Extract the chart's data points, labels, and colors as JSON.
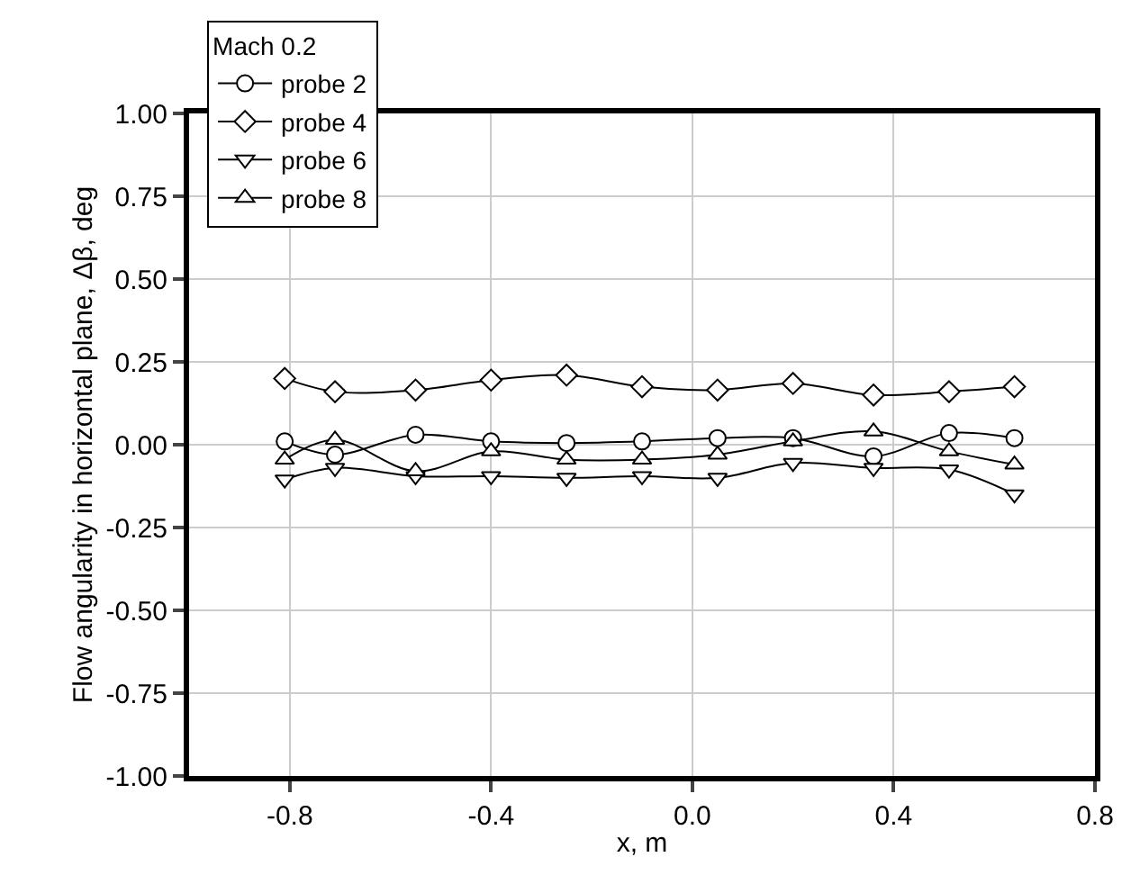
{
  "chart_data": {
    "type": "line",
    "xlabel": "x, m",
    "ylabel": "Flow angularity in horizontal plane, Δβ, deg",
    "legend_title": "Mach 0.2",
    "legend": "top left",
    "grid": true,
    "line_style": "solid",
    "x": [
      -0.81,
      -0.71,
      -0.55,
      -0.4,
      -0.25,
      -0.1,
      0.05,
      0.2,
      0.36,
      0.51,
      0.64
    ],
    "xlim": [
      -1.0,
      0.8
    ],
    "xticks": [
      -0.8,
      -0.4,
      {
        "value": 0.0,
        "label": "0.0"
      },
      0.4,
      0.8
    ],
    "ylim": [
      -1.0,
      1.0
    ],
    "yticks": [
      {
        "value": -1.0,
        "label": "-1.00"
      },
      {
        "value": -0.75,
        "label": "-0.75"
      },
      {
        "value": -0.5,
        "label": "-0.50"
      },
      {
        "value": -0.25,
        "label": "-0.25"
      },
      {
        "value": 0.0,
        "label": "0.00"
      },
      {
        "value": 0.25,
        "label": "0.25"
      },
      {
        "value": 0.5,
        "label": "0.50"
      },
      {
        "value": 0.75,
        "label": "0.75"
      },
      {
        "value": 1.0,
        "label": "1.00"
      }
    ],
    "series": [
      {
        "name": "probe 2",
        "color": "#000000",
        "marker": "circle",
        "values": [
          0.01,
          -0.03,
          0.03,
          0.01,
          0.005,
          0.01,
          0.02,
          0.02,
          -0.035,
          0.035,
          0.02
        ]
      },
      {
        "name": "probe 4",
        "color": "#000000",
        "marker": "diamond",
        "values": [
          0.2,
          0.16,
          0.165,
          0.195,
          0.21,
          0.175,
          0.165,
          0.185,
          0.15,
          0.16,
          0.175
        ]
      },
      {
        "name": "probe 6",
        "color": "#000000",
        "marker": "triangle-down",
        "values": [
          -0.105,
          -0.07,
          -0.095,
          -0.095,
          -0.1,
          -0.095,
          -0.1,
          -0.055,
          -0.07,
          -0.075,
          -0.15
        ]
      },
      {
        "name": "probe 8",
        "color": "#000000",
        "marker": "triangle",
        "values": [
          -0.045,
          0.015,
          -0.08,
          -0.02,
          -0.045,
          -0.045,
          -0.03,
          0.01,
          0.04,
          -0.02,
          -0.06
        ]
      }
    ]
  }
}
